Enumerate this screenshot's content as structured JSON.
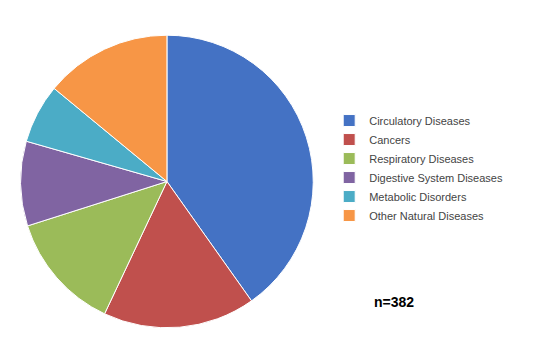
{
  "chart_data": {
    "type": "pie",
    "categories": [
      "Circulatory Diseases",
      "Cancers",
      "Respiratory Diseases",
      "Digestive System Diseases",
      "Metabolic Disorders",
      "Other Natural Diseases"
    ],
    "values": [
      43,
      18,
      14,
      10,
      7,
      15
    ],
    "colors": [
      "#4472C4",
      "#C0504D",
      "#9BBB59",
      "#8064A2",
      "#4BACC6",
      "#F79646"
    ],
    "annotations": [
      "n=382"
    ],
    "legend": "right"
  }
}
